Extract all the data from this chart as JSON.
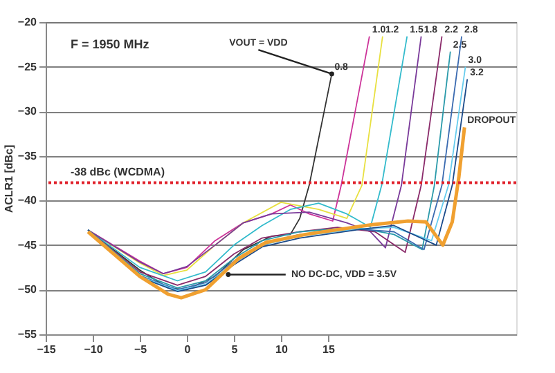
{
  "chart_data": {
    "type": "line",
    "ylabel": "ACLR1 [dBc]",
    "xlim": [
      -15,
      35
    ],
    "xticks": [
      -15,
      -10,
      -5,
      0,
      5,
      10,
      15
    ],
    "ylim": [
      -55,
      -20
    ],
    "yticks": [
      -55,
      -50,
      -45,
      -40,
      -35,
      -30,
      -25,
      -20
    ],
    "grid": "y",
    "annotations": [
      "F = 1950 MHz",
      {
        "text": "VOUT = VDD",
        "x": 15.4,
        "y": -25.8
      },
      {
        "text": "NO DC-DC, VDD = 3.5V",
        "x": 4.4,
        "y": -48.3
      }
    ],
    "ref_lines": [
      {
        "axis": "y",
        "value": -38,
        "label": "-38 dBc (WCDMA)",
        "color": "#e0202a",
        "line_style": "dotted"
      }
    ],
    "series": [
      {
        "name": "0.8",
        "color": "#333333",
        "x": [
          -10.5,
          -5,
          -2,
          0,
          3,
          6,
          9,
          11,
          12,
          13,
          15.4
        ],
        "values": [
          -43.3,
          -47.8,
          -49.8,
          -50,
          -48.5,
          -45.5,
          -44,
          -43.8,
          -42,
          -38.3,
          -25.8
        ]
      },
      {
        "name": "1.0",
        "color": "#cc3399",
        "x": [
          -10.5,
          -5,
          -2.5,
          0,
          3,
          6,
          9,
          11,
          13,
          15.5,
          16.4,
          19.4
        ],
        "values": [
          -43.3,
          -46.8,
          -48.2,
          -47.5,
          -44.5,
          -42.5,
          -41.5,
          -40.5,
          -41.5,
          -42.3,
          -38.3,
          -21.6
        ]
      },
      {
        "name": "1.2",
        "color": "#e8e040",
        "x": [
          -10.5,
          -5,
          -2.5,
          0,
          3,
          6,
          10,
          14,
          17,
          18.6,
          20.8
        ],
        "values": [
          -43.3,
          -47,
          -48.4,
          -47.8,
          -45,
          -42.5,
          -40.2,
          -41,
          -42,
          -38.3,
          -21.6
        ]
      },
      {
        "name": "1.5",
        "color": "#33bbcc",
        "x": [
          -10.5,
          -5,
          -1,
          2,
          5,
          8,
          11,
          14,
          17,
          19.5,
          20.7,
          23.4
        ],
        "values": [
          -43.3,
          -47.5,
          -49,
          -48,
          -45,
          -42.8,
          -41,
          -40.3,
          -41.5,
          -43,
          -38.3,
          -21.6
        ]
      },
      {
        "name": "1.8",
        "color": "#7a3a9a",
        "x": [
          -10.5,
          -5,
          -2.5,
          0,
          3,
          6,
          9,
          13,
          17,
          19.5,
          21.1,
          22.8,
          24.9
        ],
        "values": [
          -43.3,
          -46.9,
          -48.2,
          -47.4,
          -45,
          -42.5,
          -41.5,
          -41.3,
          -42.5,
          -43.5,
          -45.3,
          -38.3,
          -21.6
        ]
      },
      {
        "name": "2.2",
        "color": "#8a2a6a",
        "x": [
          -10.5,
          -5,
          -1,
          2,
          5,
          8,
          12,
          16,
          20,
          23.2,
          24.9,
          27.1
        ],
        "values": [
          -43.3,
          -48,
          -49.5,
          -48.5,
          -46,
          -44.2,
          -43.5,
          -43,
          -43.5,
          -45.8,
          -38.3,
          -21.6
        ]
      },
      {
        "name": "2.5",
        "color": "#2a9aaa",
        "x": [
          -10.5,
          -5,
          -1,
          2,
          5,
          8,
          12,
          18,
          22,
          25,
          26.3,
          28
        ],
        "values": [
          -43.3,
          -48.2,
          -49.8,
          -49,
          -46.5,
          -44.5,
          -43.5,
          -43,
          -43.8,
          -45.5,
          -38.3,
          -23.3
        ]
      },
      {
        "name": "2.8",
        "color": "#3a6ab0",
        "x": [
          -10.5,
          -5,
          -1,
          2,
          5,
          8,
          12,
          18,
          22,
          25.2,
          27.1,
          29.2
        ],
        "values": [
          -43.3,
          -48.4,
          -50,
          -49.2,
          -46.8,
          -44.8,
          -43.8,
          -43.2,
          -43.5,
          -45.5,
          -38.3,
          -21.6
        ]
      },
      {
        "name": "3.0",
        "color": "#66ccee",
        "x": [
          -10.5,
          -5,
          -1,
          2,
          5,
          8,
          12,
          18,
          22,
          26,
          27.8,
          29.6
        ],
        "values": [
          -43.3,
          -48.5,
          -50.1,
          -49.4,
          -47,
          -45,
          -44,
          -43.2,
          -43,
          -44.5,
          -38.3,
          -25
        ]
      },
      {
        "name": "3.2",
        "color": "#1a4a8a",
        "x": [
          -10.5,
          -5,
          -1,
          2,
          5,
          8,
          12,
          18,
          22,
          26.5,
          28.2,
          29.8
        ],
        "values": [
          -43.3,
          -48.6,
          -50.2,
          -49.5,
          -47.2,
          -45.2,
          -44.2,
          -43.3,
          -42.8,
          -45,
          -38.3,
          -26.4
        ]
      },
      {
        "name": "DROPOUT",
        "color": "#f0a030",
        "x": [
          -10.5,
          -5,
          -2,
          -0.6,
          2,
          5.5,
          8.4,
          12.6,
          19.7,
          23.5,
          25.4,
          27.2,
          28.2,
          28.9,
          29.5
        ],
        "values": [
          -43.5,
          -48.5,
          -50.5,
          -50.9,
          -50,
          -46.5,
          -44.7,
          -43.8,
          -42.7,
          -42.3,
          -42.4,
          -45,
          -42.4,
          -37.4,
          -31.8
        ]
      }
    ]
  }
}
